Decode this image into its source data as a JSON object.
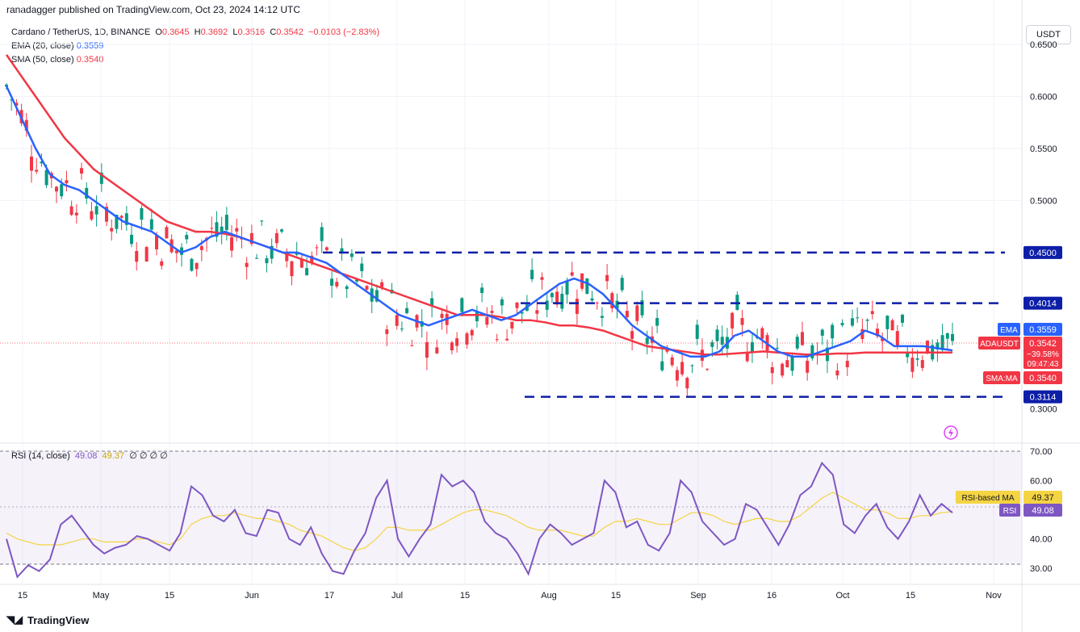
{
  "header": {
    "publish_line": "ranadagger published on TradingView.com, Oct 23, 2024 14:12 UTC"
  },
  "legend": {
    "symbol": "Cardano / TetherUS, 1D, BINANCE",
    "open_label": "O",
    "open": "0.3645",
    "high_label": "H",
    "high": "0.3692",
    "low_label": "L",
    "low": "0.3516",
    "close_label": "C",
    "close": "0.3542",
    "change": "−0.0103 (−2.83%)",
    "ema_label": "EMA (20, close)",
    "ema_value": "0.3559",
    "sma_label": "SMA (50, close)",
    "sma_value": "0.3540"
  },
  "currency_button": "USDT",
  "rsi_legend": {
    "label": "RSI (14, close)",
    "rsi": "49.08",
    "ma": "49.37",
    "extras": "∅ ∅ ∅ ∅"
  },
  "footer": {
    "brand": "TradingView"
  },
  "colors": {
    "up": "#089981",
    "down": "#f23645",
    "ema": "#2962ff",
    "sma": "#f23645",
    "rsi": "#7e57c2",
    "rsi_ma": "#f5d442",
    "levels": "#0d1ea8"
  },
  "chart_data": [
    {
      "type": "candlestick",
      "y_axis_ticks": [
        "0.6500",
        "0.6000",
        "0.5500",
        "0.5000",
        "0.3000"
      ],
      "ylim": [
        0.27,
        0.65
      ],
      "x_ticks": [
        "15",
        "May",
        "15",
        "Jun",
        "17",
        "Jul",
        "15",
        "Aug",
        "15",
        "Sep",
        "16",
        "Oct",
        "15",
        "Nov"
      ],
      "levels": [
        {
          "value": 0.45,
          "label": "0.4500"
        },
        {
          "value": 0.4014,
          "label": "0.4014"
        },
        {
          "value": 0.3114,
          "label": "0.3114"
        }
      ],
      "price_tags": [
        {
          "name": "EMA",
          "value": "0.3559"
        },
        {
          "name": "ADAUSDT",
          "value": "0.3542",
          "extra": [
            "−39.58%",
            "09:47:43"
          ]
        },
        {
          "name": "SMA:MA",
          "value": "0.3540"
        }
      ],
      "ema_series": [
        0.61,
        0.58,
        0.55,
        0.525,
        0.515,
        0.51,
        0.5,
        0.49,
        0.48,
        0.475,
        0.47,
        0.46,
        0.45,
        0.455,
        0.465,
        0.47,
        0.465,
        0.46,
        0.455,
        0.45,
        0.45,
        0.445,
        0.44,
        0.43,
        0.42,
        0.41,
        0.4,
        0.39,
        0.385,
        0.38,
        0.385,
        0.39,
        0.395,
        0.39,
        0.385,
        0.39,
        0.4,
        0.41,
        0.42,
        0.425,
        0.42,
        0.41,
        0.395,
        0.38,
        0.37,
        0.36,
        0.355,
        0.35,
        0.35,
        0.355,
        0.37,
        0.375,
        0.365,
        0.355,
        0.35,
        0.35,
        0.355,
        0.36,
        0.365,
        0.375,
        0.37,
        0.36,
        0.36,
        0.36,
        0.358,
        0.356
      ],
      "sma_series": [
        0.64,
        0.62,
        0.6,
        0.58,
        0.56,
        0.545,
        0.53,
        0.52,
        0.51,
        0.5,
        0.49,
        0.48,
        0.475,
        0.47,
        0.47,
        0.468,
        0.465,
        0.46,
        0.455,
        0.45,
        0.445,
        0.44,
        0.435,
        0.43,
        0.425,
        0.42,
        0.415,
        0.41,
        0.405,
        0.4,
        0.395,
        0.39,
        0.39,
        0.39,
        0.388,
        0.385,
        0.385,
        0.383,
        0.38,
        0.38,
        0.378,
        0.375,
        0.37,
        0.365,
        0.36,
        0.358,
        0.356,
        0.354,
        0.352,
        0.352,
        0.353,
        0.354,
        0.355,
        0.354,
        0.353,
        0.352,
        0.352,
        0.353,
        0.353,
        0.354,
        0.354,
        0.354,
        0.354,
        0.354,
        0.354,
        0.354
      ]
    },
    {
      "type": "line",
      "title": "RSI (14, close)",
      "ylim": [
        25,
        72
      ],
      "y_axis_ticks": [
        "70.00",
        "60.00",
        "40.00",
        "30.00"
      ],
      "price_tags": [
        {
          "name": "RSI-based MA",
          "value": "49.37"
        },
        {
          "name": "RSI",
          "value": "49.08"
        }
      ],
      "rsi_series": [
        40,
        27,
        31,
        29,
        33,
        45,
        48,
        43,
        38,
        35,
        37,
        38,
        41,
        40,
        38,
        36,
        42,
        58,
        55,
        48,
        46,
        50,
        42,
        41,
        50,
        49,
        40,
        38,
        44,
        35,
        29,
        28,
        36,
        42,
        54,
        60,
        40,
        34,
        40,
        45,
        62,
        58,
        60,
        56,
        46,
        42,
        40,
        35,
        28,
        40,
        45,
        42,
        38,
        40,
        42,
        60,
        56,
        44,
        46,
        38,
        36,
        42,
        60,
        56,
        46,
        42,
        38,
        40,
        52,
        50,
        44,
        38,
        45,
        55,
        58,
        66,
        62,
        45,
        42,
        48,
        52,
        44,
        40,
        46,
        55,
        48,
        52,
        49
      ],
      "rsi_ma_series": [
        42,
        40,
        39,
        38,
        38,
        38,
        39,
        40,
        40,
        39,
        39,
        39,
        40,
        40,
        39,
        38,
        40,
        45,
        47,
        48,
        48,
        49,
        48,
        47,
        47,
        46,
        45,
        43,
        42,
        41,
        39,
        37,
        36,
        37,
        40,
        44,
        44,
        43,
        43,
        43,
        45,
        47,
        49,
        50,
        50,
        49,
        48,
        46,
        44,
        43,
        43,
        43,
        42,
        41,
        41,
        44,
        46,
        46,
        47,
        46,
        45,
        45,
        47,
        49,
        49,
        48,
        46,
        45,
        46,
        47,
        47,
        46,
        46,
        48,
        51,
        54,
        56,
        54,
        52,
        50,
        50,
        49,
        47,
        47,
        48,
        48,
        49,
        49.37
      ]
    }
  ]
}
